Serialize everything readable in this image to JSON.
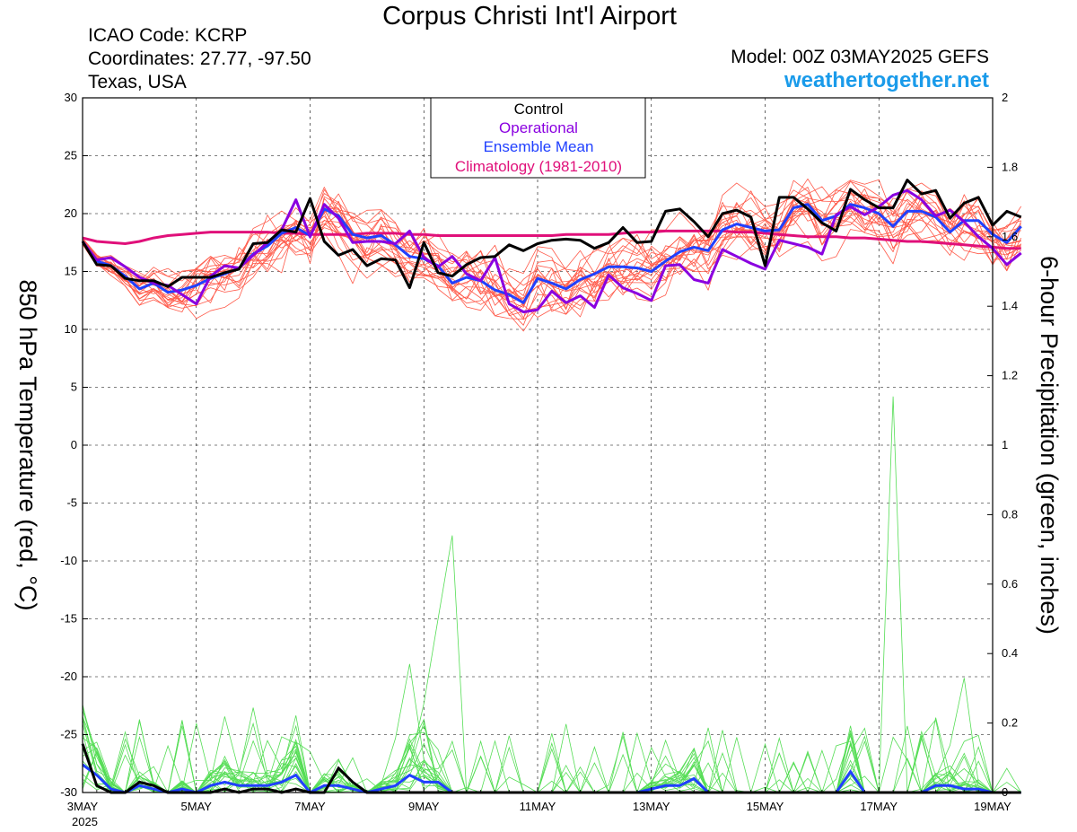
{
  "header": {
    "title": "Corpus Christi Int'l Airport",
    "icao": "ICAO Code: KCRP",
    "coords": "Coordinates: 27.77, -97.50",
    "region": "Texas, USA",
    "model": "Model: 00Z 03MAY2025 GEFS",
    "site": "weathertogether.net"
  },
  "chart_data": {
    "type": "line",
    "title": "Corpus Christi Int'l Airport",
    "ylabel_left": "850 hPa Temperature (red, °C)",
    "ylabel_right": "6-hour Precipitation (green, inches)",
    "ylim_left": [
      -30,
      30
    ],
    "ylim_right": [
      0,
      2
    ],
    "yticks_left": [
      "30",
      "25",
      "20",
      "15",
      "10",
      "5",
      "0",
      "-5",
      "-10",
      "-15",
      "-20",
      "-25",
      "-30"
    ],
    "yticks_right": [
      "2",
      "1.8",
      "1.6",
      "1.4",
      "1.2",
      "1",
      "0.8",
      "0.6",
      "0.4",
      "0.2",
      "0"
    ],
    "xlim_days": [
      0,
      16
    ],
    "xticks": [
      {
        "day": 0,
        "label": "3MAY"
      },
      {
        "day": 2,
        "label": "5MAY"
      },
      {
        "day": 4,
        "label": "7MAY"
      },
      {
        "day": 6,
        "label": "9MAY"
      },
      {
        "day": 8,
        "label": "11MAY"
      },
      {
        "day": 10,
        "label": "13MAY"
      },
      {
        "day": 12,
        "label": "15MAY"
      },
      {
        "day": 14,
        "label": "17MAY"
      },
      {
        "day": 16,
        "label": "19MAY"
      }
    ],
    "year_label": "2025",
    "grid": true,
    "legend": {
      "position": "top-center",
      "items": [
        {
          "label": "Control",
          "color": "#000000"
        },
        {
          "label": "Operational",
          "color": "#8a00e0"
        },
        {
          "label": "Ensemble Mean",
          "color": "#2040ff"
        },
        {
          "label": "Climatology (1981-2010)",
          "color": "#e0107a"
        }
      ]
    },
    "colors": {
      "members": "#ff5a4a",
      "precip_members": "#55dd55",
      "control": "#000000",
      "operational": "#8a00e0",
      "mean": "#2040ff",
      "climo": "#e0107a"
    },
    "x_step_days": 0.25,
    "temperature": {
      "control": [
        17.6,
        15.6,
        15.5,
        14.4,
        14.2,
        14.2,
        13.7,
        14.5,
        14.5,
        14.5,
        14.9,
        15.2,
        17.4,
        17.5,
        18.6,
        18.4,
        21.3,
        17.6,
        16.4,
        16.9,
        15.5,
        16.1,
        16.0,
        13.6,
        17.5,
        14.9,
        14.6,
        15.6,
        16.2,
        16.3,
        17.3,
        16.8,
        17.4,
        17.7,
        17.8,
        17.7,
        17.0,
        17.5,
        18.8,
        17.5,
        17.6,
        20.2,
        20.4,
        19.3,
        18.0,
        20.0,
        20.3,
        19.7,
        15.5,
        21.4,
        21.4,
        20.4,
        19.2,
        18.5,
        22.1,
        21.2,
        20.5,
        20.5,
        22.9,
        21.7,
        22.0,
        19.6,
        20.9,
        21.4,
        19.0,
        20.2,
        19.7
      ],
      "operational": [
        17.6,
        16.0,
        16.2,
        15.4,
        14.5,
        14.0,
        13.8,
        13.0,
        12.2,
        14.6,
        15.5,
        15.3,
        16.4,
        17.5,
        18.6,
        21.2,
        18.0,
        20.8,
        19.6,
        17.5,
        17.6,
        17.6,
        17.4,
        18.5,
        16.2,
        15.4,
        16.3,
        14.8,
        14.2,
        16.2,
        12.2,
        11.5,
        11.7,
        13.3,
        12.3,
        12.9,
        11.9,
        14.7,
        13.6,
        13.1,
        12.5,
        15.5,
        15.6,
        14.3,
        14.0,
        16.9,
        16.3,
        15.7,
        15.2,
        17.7,
        17.4,
        17.1,
        16.5,
        19.9,
        20.6,
        19.9,
        20.6,
        21.6,
        22.0,
        21.2,
        19.8,
        20.3,
        19.3,
        18.0,
        17.0,
        15.6,
        16.6
      ],
      "mean": [
        17.6,
        15.9,
        15.5,
        14.6,
        13.5,
        14.0,
        13.2,
        13.4,
        13.8,
        14.4,
        14.8,
        15.3,
        16.5,
        17.2,
        18.3,
        18.8,
        18.1,
        20.4,
        19.8,
        18.2,
        17.9,
        18.1,
        17.3,
        16.3,
        16.1,
        15.5,
        14.0,
        14.5,
        14.2,
        13.4,
        13.0,
        12.3,
        14.4,
        14.0,
        13.5,
        14.3,
        14.8,
        15.4,
        15.4,
        15.3,
        15.0,
        15.9,
        16.7,
        17.1,
        16.8,
        18.6,
        19.1,
        18.8,
        18.5,
        18.6,
        20.5,
        20.8,
        19.4,
        19.8,
        20.8,
        20.5,
        20.0,
        18.9,
        20.2,
        20.2,
        19.7,
        18.4,
        19.4,
        19.4,
        18.2,
        17.5,
        18.9
      ],
      "climatology": [
        17.9,
        17.6,
        17.5,
        17.4,
        17.6,
        17.9,
        18.1,
        18.2,
        18.3,
        18.4,
        18.4,
        18.4,
        18.4,
        18.4,
        18.3,
        18.3,
        18.2,
        18.2,
        18.2,
        18.2,
        18.3,
        18.3,
        18.3,
        18.2,
        18.2,
        18.1,
        18.1,
        18.1,
        18.1,
        18.1,
        18.1,
        18.1,
        18.1,
        18.1,
        18.2,
        18.2,
        18.2,
        18.2,
        18.3,
        18.4,
        18.4,
        18.5,
        18.5,
        18.5,
        18.5,
        18.5,
        18.4,
        18.4,
        18.3,
        18.2,
        18.1,
        18.0,
        18.0,
        18.0,
        17.9,
        17.9,
        17.8,
        17.7,
        17.6,
        17.6,
        17.5,
        17.4,
        17.3,
        17.2,
        17.1,
        17.0,
        17.0
      ]
    },
    "precipitation": {
      "control": [
        0.14,
        0.02,
        0.0,
        0.0,
        0.03,
        0.02,
        0.0,
        0.0,
        0.0,
        0.0,
        0.01,
        0.0,
        0.01,
        0.01,
        0.0,
        0.01,
        0.0,
        0.0,
        0.07,
        0.03,
        0.0,
        0.0,
        0.0,
        0.0,
        0.0,
        0.0,
        0.0,
        0.0,
        0.0,
        0.0,
        0.0,
        0.0,
        0.0,
        0.0,
        0.0,
        0.0,
        0.0,
        0.0,
        0.0,
        0.0,
        0.0,
        0.0,
        0.0,
        0.0,
        0.0,
        0.0,
        0.0,
        0.0,
        0.0,
        0.0,
        0.0,
        0.0,
        0.0,
        0.0,
        0.0,
        0.0,
        0.0,
        0.0,
        0.0,
        0.0,
        0.0,
        0.0,
        0.0,
        0.0,
        0.0,
        0.0,
        0.0
      ],
      "mean": [
        0.08,
        0.05,
        0.01,
        0.0,
        0.02,
        0.01,
        0.0,
        0.01,
        0.0,
        0.02,
        0.03,
        0.02,
        0.02,
        0.02,
        0.03,
        0.05,
        0.0,
        0.02,
        0.02,
        0.01,
        0.0,
        0.01,
        0.02,
        0.05,
        0.03,
        0.03,
        0.0,
        0.0,
        0.0,
        0.0,
        0.0,
        0.0,
        0.0,
        0.0,
        0.0,
        0.0,
        0.0,
        0.0,
        0.0,
        0.0,
        0.01,
        0.02,
        0.02,
        0.04,
        0.0,
        0.0,
        0.0,
        0.0,
        0.0,
        0.0,
        0.0,
        0.0,
        0.0,
        0.0,
        0.06,
        0.0,
        0.0,
        0.0,
        0.0,
        0.0,
        0.02,
        0.02,
        0.01,
        0.01,
        0.0,
        0.0,
        0.0
      ]
    }
  }
}
